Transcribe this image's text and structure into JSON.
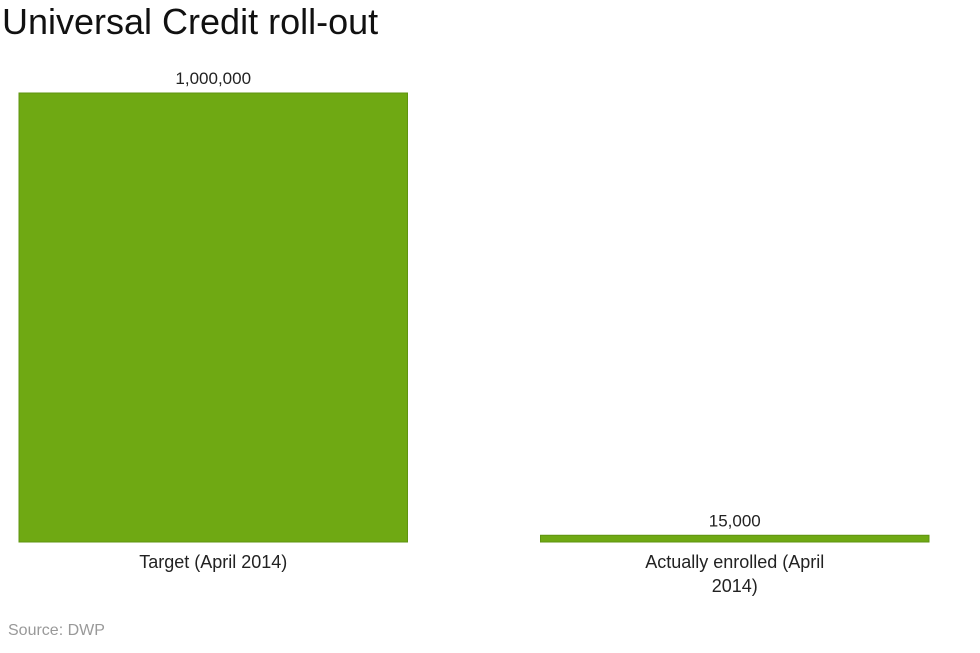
{
  "title": "Universal Credit roll-out",
  "source": "Source: DWP",
  "chart_data": {
    "type": "bar",
    "title": "Universal Credit roll-out",
    "categories": [
      "Target (April 2014)",
      "Actually enrolled (April 2014)"
    ],
    "category_label_lines": [
      [
        "Target (April 2014)"
      ],
      [
        "Actually enrolled (April",
        "2014)"
      ]
    ],
    "values": [
      1000000,
      15000
    ],
    "data_labels": [
      "1,000,000",
      "15,000"
    ],
    "xlabel": "",
    "ylabel": "",
    "ylim": [
      0,
      1000000
    ],
    "grid": false,
    "legend": "none",
    "bar_color": "#6fa913",
    "bar_edge_color": "#5f9410"
  }
}
